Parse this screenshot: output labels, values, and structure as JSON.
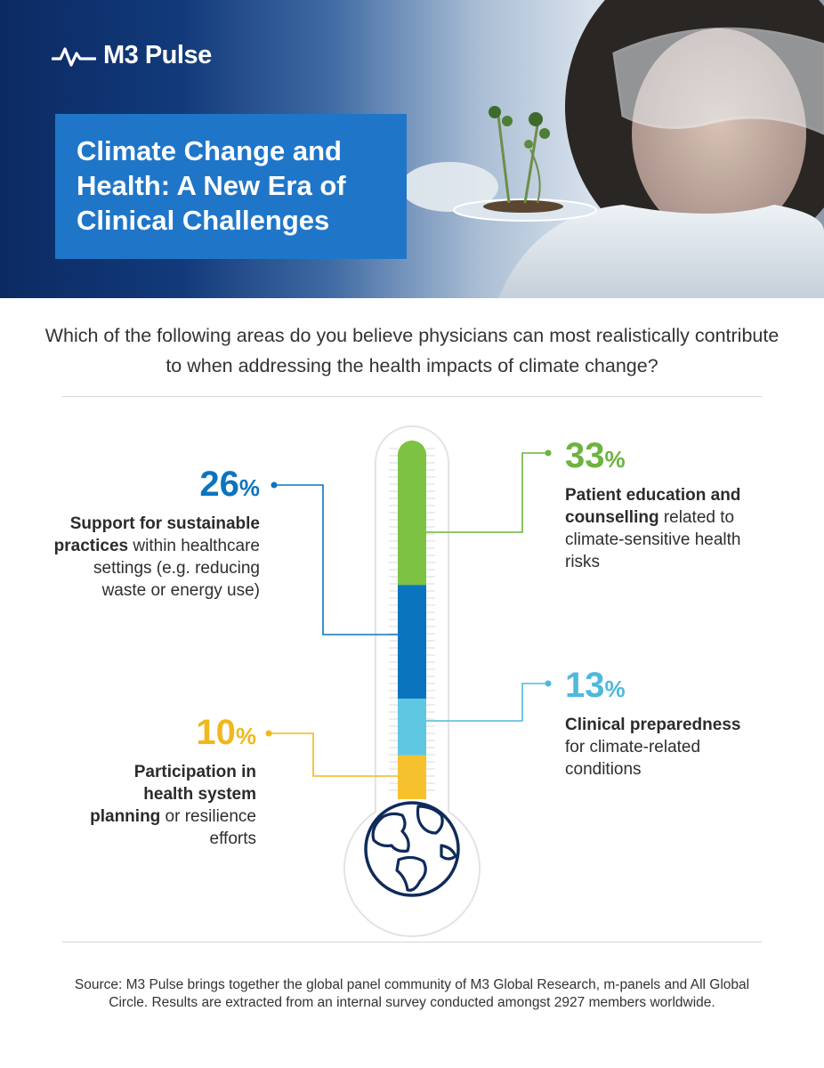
{
  "brand": {
    "name": "M3 Pulse",
    "logo_icon": "pulse-wave-icon"
  },
  "header": {
    "title": "Climate Change and Health: A New Era of Clinical Challenges"
  },
  "question": "Which of the following areas do you believe physicians can most realistically contribute to when addressing the health impacts of climate change?",
  "callouts": {
    "education": {
      "value": "33",
      "unit": "%",
      "bold": "Patient education and counselling",
      "rest": " related to climate-sensitive health risks"
    },
    "sustainable": {
      "value": "26",
      "unit": "%",
      "bold": "Support for sustainable practices",
      "rest": " within healthcare settings (e.g. reducing waste or energy use)"
    },
    "preparedness": {
      "value": "13",
      "unit": "%",
      "bold": "Clinical preparedness",
      "rest": " for climate-related conditions"
    },
    "planning": {
      "value": "10",
      "unit": "%",
      "bold": "Participation in health system planning",
      "rest": " or resilience efforts"
    }
  },
  "chart_data": {
    "type": "bar",
    "subtype": "stacked thermometer",
    "categories": [
      "Patient education and counselling related to climate-sensitive health risks",
      "Support for sustainable practices within healthcare settings (e.g. reducing waste or energy use)",
      "Clinical preparedness for climate-related conditions",
      "Participation in health system planning or resilience efforts"
    ],
    "values": [
      33,
      26,
      13,
      10
    ],
    "unit": "%",
    "colors": [
      "#7dc242",
      "#0b74be",
      "#5fc6e2",
      "#f5c22e"
    ],
    "label_colors": [
      "#6cb33f",
      "#0b74be",
      "#4fb9dc",
      "#f0b81c"
    ],
    "icon": "globe-icon"
  },
  "source": "Source: M3 Pulse brings together the global panel community of M3 Global Research, m-panels and All Global Circle. Results are extracted from an internal survey conducted amongst 2927 members worldwide.",
  "colors": {
    "navy": "#0b2a63",
    "title_box": "#1f76c9",
    "text": "#2b2b2b"
  }
}
